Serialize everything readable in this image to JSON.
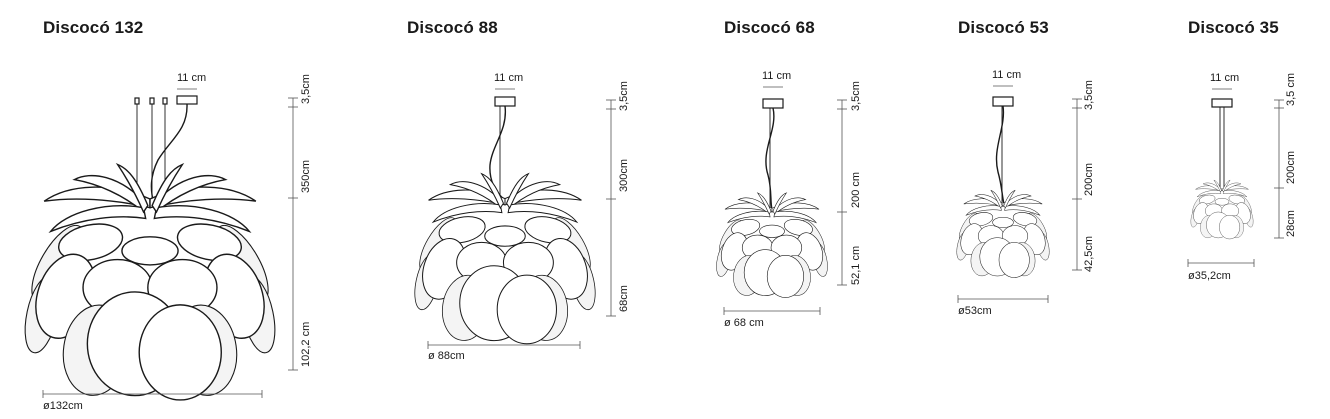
{
  "models": [
    {
      "title": "Discocó 132",
      "canopy_width": "11 cm",
      "canopy_height": "3,5cm",
      "suspension_length": "350cm",
      "body_height": "102,2 cm",
      "diameter": "ø132cm"
    },
    {
      "title": "Discocó 88",
      "canopy_width": "11 cm",
      "canopy_height": "3,5cm",
      "suspension_length": "300cm",
      "body_height": "68cm",
      "diameter": "ø 88cm"
    },
    {
      "title": "Discocó 68",
      "canopy_width": "11 cm",
      "canopy_height": "3,5cm",
      "suspension_length": "200 cm",
      "body_height": "52,1 cm",
      "diameter": "ø 68 cm"
    },
    {
      "title": "Discocó 53",
      "canopy_width": "11 cm",
      "canopy_height": "3,5cm",
      "suspension_length": "200cm",
      "body_height": "42,5cm",
      "diameter": "ø53cm"
    },
    {
      "title": "Discocó 35",
      "canopy_width": "11 cm",
      "canopy_height": "3,5 cm",
      "suspension_length": "200cm",
      "body_height": "28cm",
      "diameter": "ø35,2cm"
    }
  ]
}
